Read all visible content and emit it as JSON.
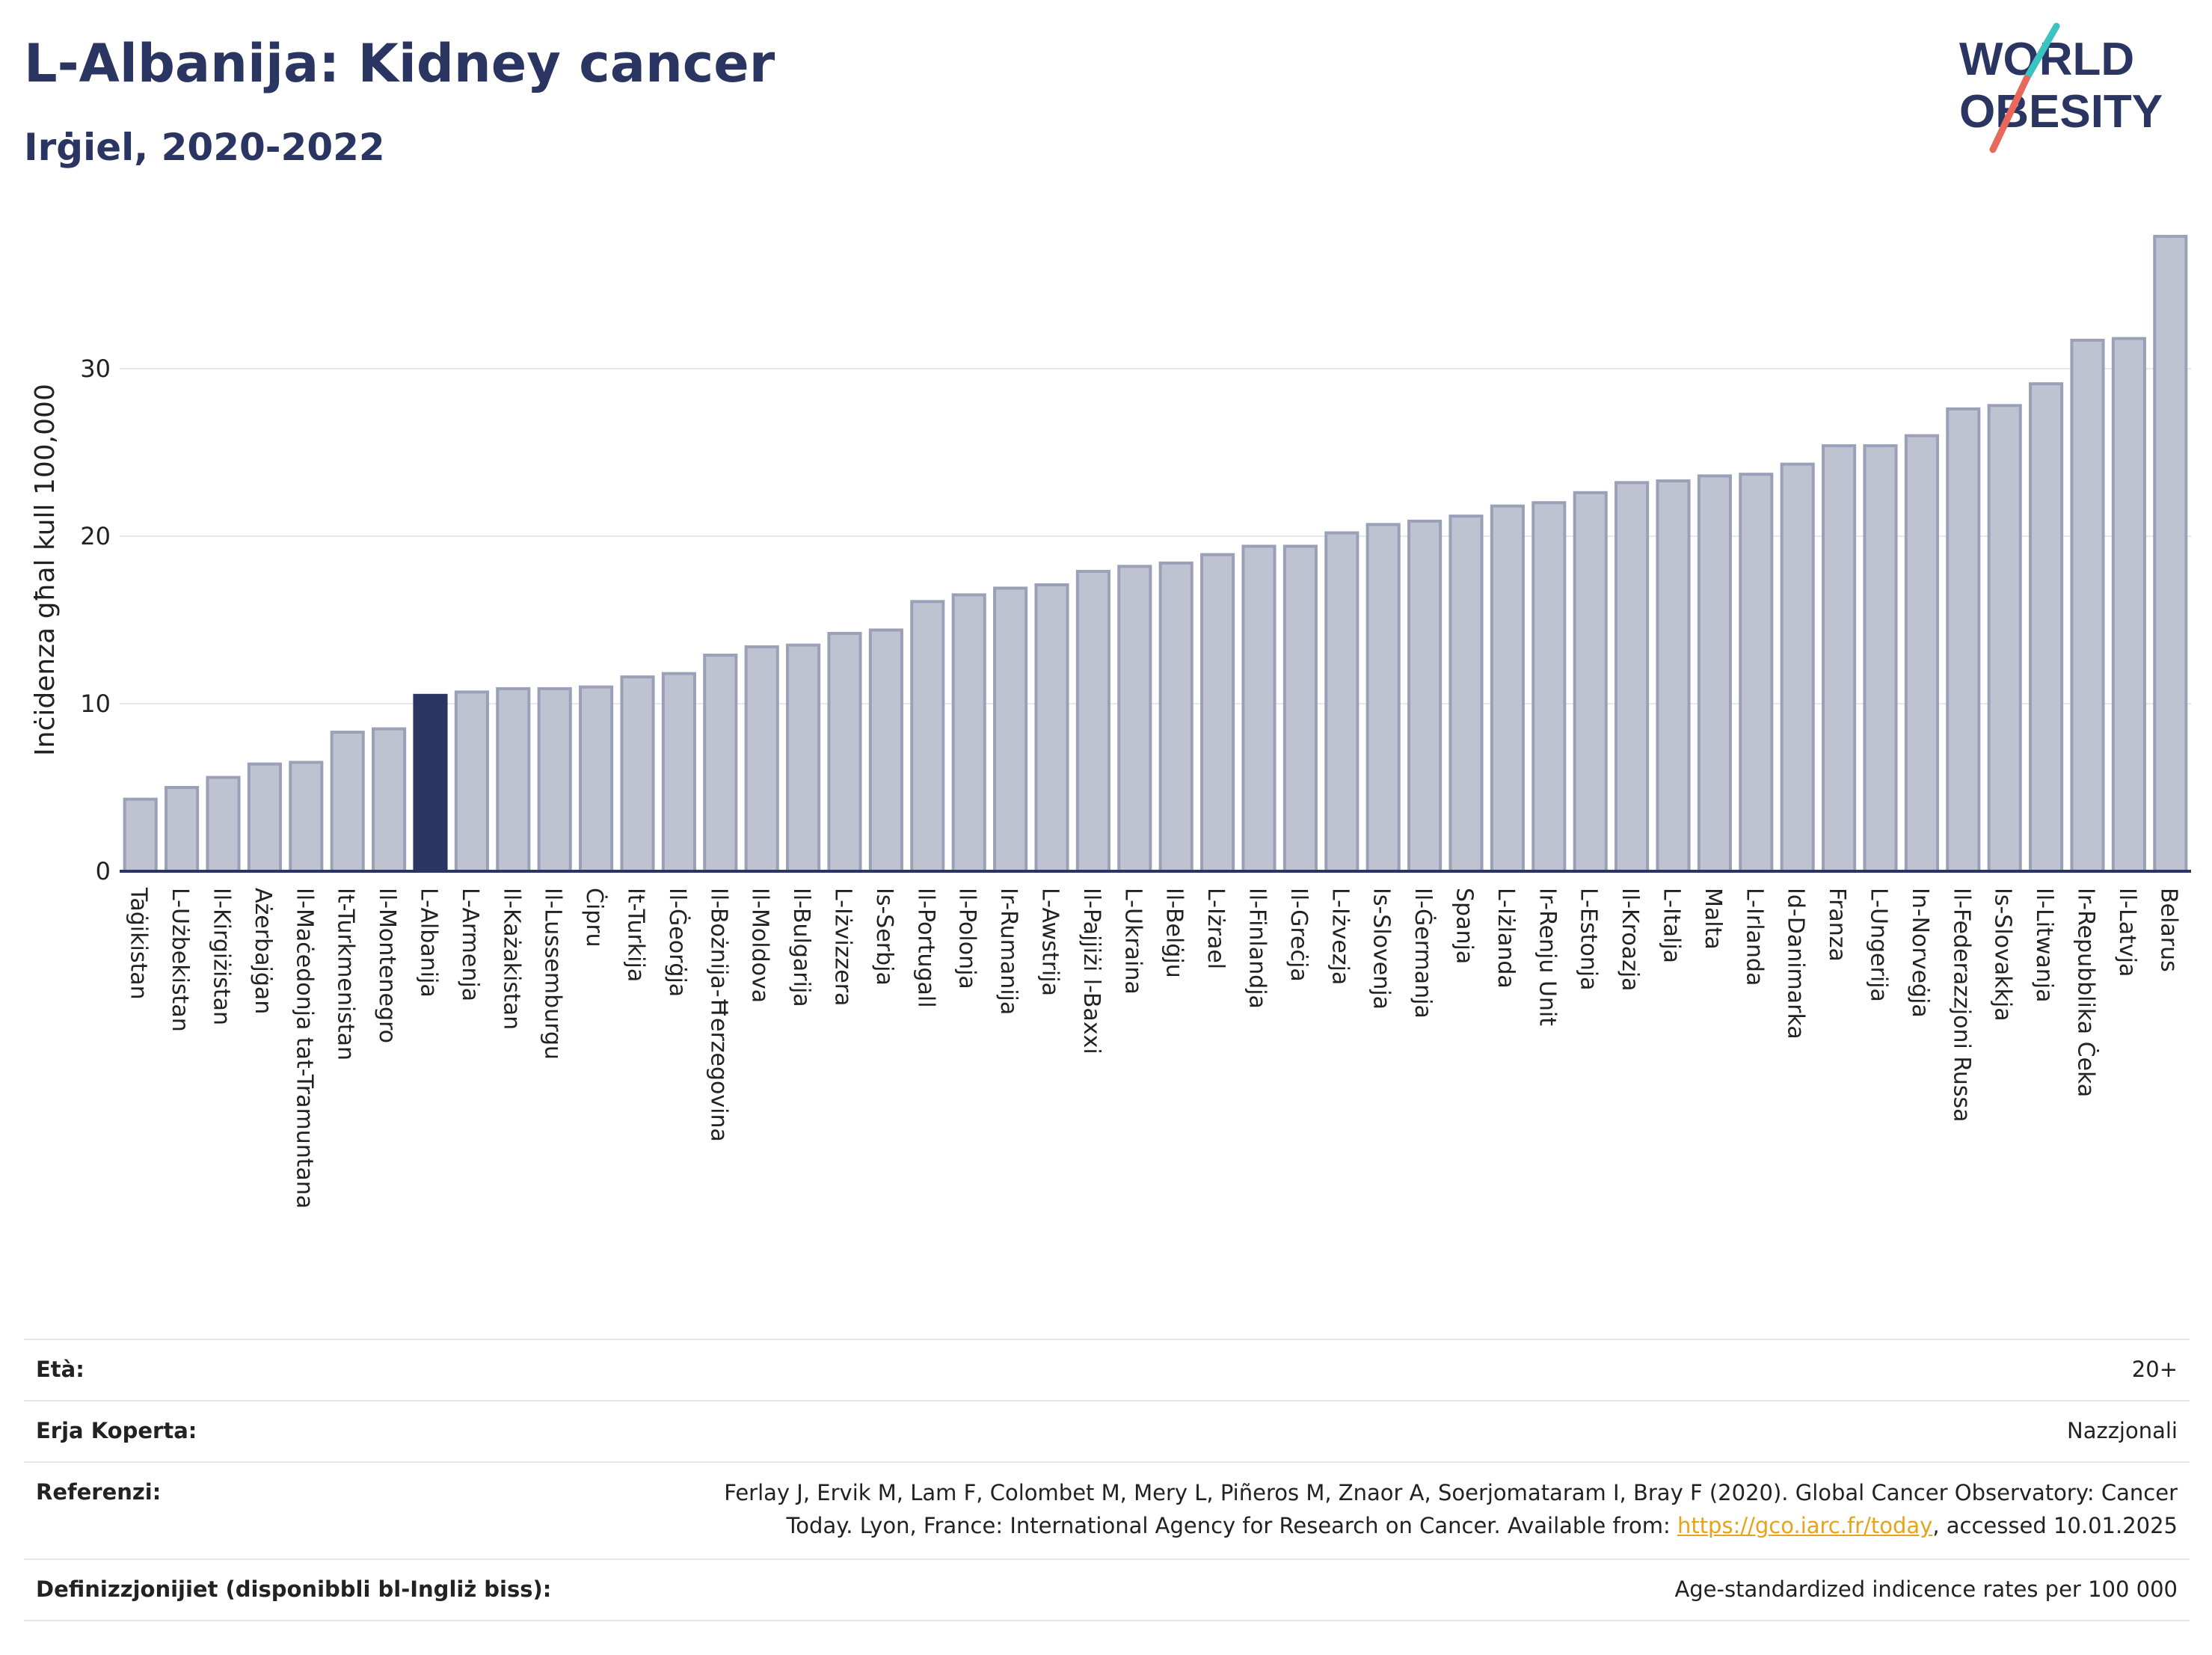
{
  "header": {
    "title": "L-Albanija: Kidney cancer",
    "subtitle": "Irġiel, 2020-2022"
  },
  "logo": {
    "line1": "WORLD",
    "line2": "OBESITY"
  },
  "colors": {
    "highlight": "#2b3561",
    "bar_fill": "#bfc3d1",
    "bar_stroke": "#9aa0b7",
    "accent_red": "#e8685a",
    "accent_teal": "#3cc3c0"
  },
  "chart_data": {
    "type": "bar",
    "ylabel": "Inċidenza għal kull 100,000",
    "ylim": [
      0,
      38.5
    ],
    "yticks": [
      0,
      10,
      20,
      30
    ],
    "highlight": "L-Albanija",
    "categories": [
      "Taġikistan",
      "L-Użbekistan",
      "Il-Kirgiżistan",
      "Ażerbajġan",
      "Il-Maċedonja tat-Tramuntana",
      "It-Turkmenistan",
      "Il-Montenegro",
      "L-Albanija",
      "L-Armenja",
      "Il-Każakistan",
      "Il-Lussemburgu",
      "Ċipru",
      "It-Turkija",
      "Il-Ġeorġja",
      "Il-Bożnija-Ħerzegovina",
      "Il-Moldova",
      "Il-Bulgarija",
      "L-Iżvizzera",
      "Is-Serbja",
      "Il-Portugall",
      "Il-Polonja",
      "Ir-Rumanija",
      "L-Awstrija",
      "Il-Pajjiżi l-Baxxi",
      "L-Ukraina",
      "Il-Belġju",
      "L-Iżrael",
      "Il-Finlandja",
      "Il-Greċja",
      "L-Iżvezja",
      "Is-Slovenja",
      "Il-Ġermanja",
      "Spanja",
      "L-Iżlanda",
      "Ir-Renju Unit",
      "L-Estonja",
      "Il-Kroazja",
      "L-Italja",
      "Malta",
      "L-Irlanda",
      "Id-Danimarka",
      "Franza",
      "L-Ungerija",
      "In-Norveġja",
      "Il-Federazzjoni Russa",
      "Is-Slovakkja",
      "Il-Litwanja",
      "Ir-Repubblika Ċeka",
      "Il-Latvja",
      "Belarus"
    ],
    "values": [
      4.3,
      5.0,
      5.6,
      6.4,
      6.5,
      8.3,
      8.5,
      10.5,
      10.7,
      10.9,
      10.9,
      11.0,
      11.6,
      11.8,
      12.9,
      13.4,
      13.5,
      14.2,
      14.4,
      16.1,
      16.5,
      16.9,
      17.1,
      17.9,
      18.2,
      18.4,
      18.9,
      19.4,
      19.4,
      20.2,
      20.7,
      20.9,
      21.2,
      21.8,
      22.0,
      22.6,
      23.2,
      23.3,
      23.6,
      23.7,
      24.3,
      25.4,
      25.4,
      26.0,
      27.6,
      27.8,
      29.1,
      31.7,
      31.8,
      37.9
    ]
  },
  "meta": {
    "age_label": "Età:",
    "age_value": "20+",
    "coverage_label": "Erja Koperta:",
    "coverage_value": "Nazzjonali",
    "ref_label": "Referenzi:",
    "ref_line1": "Ferlay J, Ervik M, Lam F, Colombet M, Mery L, Piñeros M, Znaor A, Soerjomataram I, Bray F (2020). Global Cancer Observatory: Cancer",
    "ref_line2_pre": "Today. Lyon, France: International Agency for Research on Cancer. Available from: ",
    "ref_link": "https://gco.iarc.fr/today",
    "ref_line2_post": ", accessed 10.01.2025",
    "def_label": "Definizzjonijiet (disponibbli bl-Ingliż biss):",
    "def_value": "Age-standardized indicence rates per 100 000"
  }
}
